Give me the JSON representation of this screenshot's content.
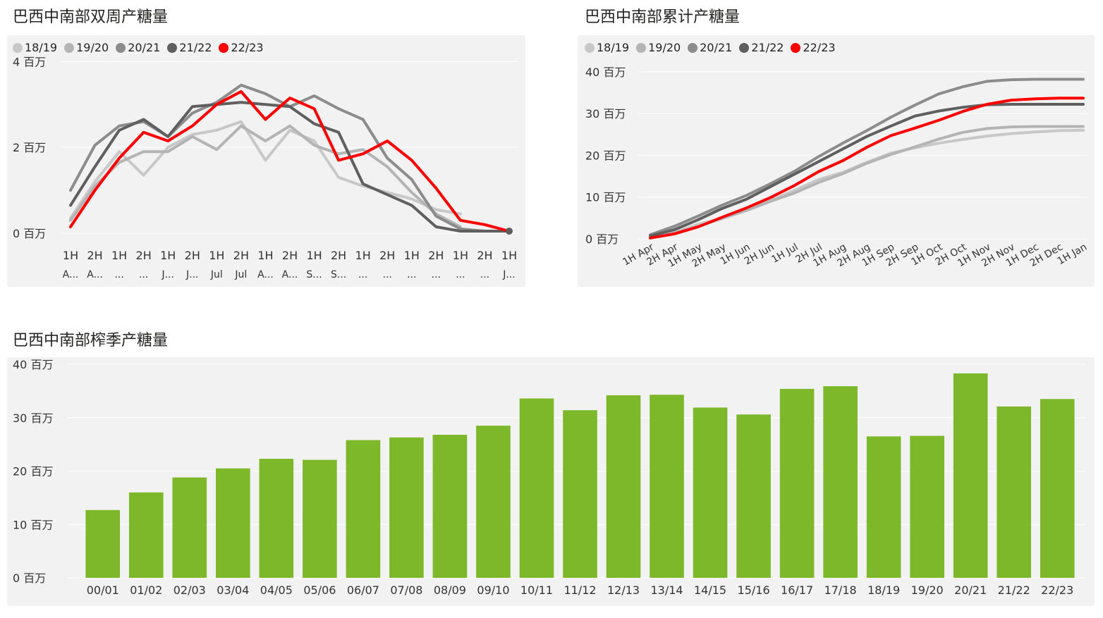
{
  "chart_data": [
    {
      "id": "biweekly",
      "type": "line",
      "title": "巴西中南部双周产糖量",
      "ylim": [
        0,
        4.3
      ],
      "y_ticks": [
        {
          "v": 0,
          "label": "0 百万"
        },
        {
          "v": 2,
          "label": "2 百万"
        },
        {
          "v": 4,
          "label": "4 百万"
        }
      ],
      "categories": [
        [
          "1H",
          "A..."
        ],
        [
          "2H",
          "A..."
        ],
        [
          "1H",
          "..."
        ],
        [
          "2H",
          "..."
        ],
        [
          "1H",
          "J..."
        ],
        [
          "2H",
          "J..."
        ],
        [
          "1H",
          "Jul"
        ],
        [
          "2H",
          "Jul"
        ],
        [
          "1H",
          "A..."
        ],
        [
          "2H",
          "A..."
        ],
        [
          "1H",
          "S..."
        ],
        [
          "2H",
          "S..."
        ],
        [
          "1H",
          "..."
        ],
        [
          "2H",
          "..."
        ],
        [
          "1H",
          "..."
        ],
        [
          "2H",
          "..."
        ],
        [
          "1H",
          "..."
        ],
        [
          "2H",
          "..."
        ],
        [
          "1H",
          "J..."
        ]
      ],
      "series": [
        {
          "name": "18/19",
          "color": "#c8c8c8",
          "values": [
            0.35,
            1.2,
            1.9,
            1.35,
            2.0,
            2.3,
            2.4,
            2.6,
            1.7,
            2.4,
            2.15,
            1.3,
            1.1,
            0.95,
            0.8,
            0.55,
            0.45,
            null,
            null
          ]
        },
        {
          "name": "19/20",
          "color": "#b4b4b4",
          "values": [
            0.3,
            1.1,
            1.65,
            1.9,
            1.9,
            2.25,
            1.95,
            2.5,
            2.15,
            2.5,
            2.05,
            1.85,
            1.95,
            1.55,
            0.95,
            0.45,
            0.15,
            null,
            null
          ]
        },
        {
          "name": "20/21",
          "color": "#8c8c8c",
          "values": [
            1.0,
            2.05,
            2.5,
            2.6,
            2.25,
            2.8,
            3.05,
            3.45,
            3.25,
            2.95,
            3.2,
            2.9,
            2.65,
            1.75,
            1.25,
            0.4,
            0.1,
            0.05,
            null
          ]
        },
        {
          "name": "21/22",
          "color": "#5f5f5f",
          "values": [
            0.65,
            1.55,
            2.4,
            2.65,
            2.25,
            2.95,
            3.0,
            3.05,
            3.0,
            2.95,
            2.55,
            2.35,
            1.15,
            0.9,
            0.65,
            0.15,
            0.05,
            0.05,
            0.05
          ]
        },
        {
          "name": "22/23",
          "color": "#ff0000",
          "values": [
            0.15,
            1.0,
            1.75,
            2.35,
            2.15,
            2.5,
            3.0,
            3.3,
            2.65,
            3.15,
            2.9,
            1.7,
            1.85,
            2.15,
            1.7,
            1.05,
            0.3,
            0.2,
            0.05
          ]
        }
      ]
    },
    {
      "id": "cumulative",
      "type": "line",
      "title": "巴西中南部累计产糖量",
      "ylim": [
        0,
        43
      ],
      "y_ticks": [
        {
          "v": 0,
          "label": "0 百万"
        },
        {
          "v": 10,
          "label": "10 百万"
        },
        {
          "v": 20,
          "label": "20 百万"
        },
        {
          "v": 30,
          "label": "30 百万"
        },
        {
          "v": 40,
          "label": "40 百万"
        }
      ],
      "categories": [
        "1H Apr",
        "2H Apr",
        "1H May",
        "2H May",
        "1H Jun",
        "2H Jun",
        "1H Jul",
        "2H Jul",
        "1H Aug",
        "2H Aug",
        "1H Sep",
        "2H Sep",
        "1H Oct",
        "2H Oct",
        "1H Nov",
        "2H Nov",
        "1H Dec",
        "2H Dec",
        "1H Jan"
      ],
      "series": [
        {
          "name": "18/19",
          "color": "#c8c8c8",
          "values": [
            0.4,
            1.6,
            3.5,
            4.9,
            6.9,
            9.2,
            11.6,
            14.2,
            15.9,
            18.3,
            20.5,
            21.8,
            22.9,
            23.8,
            24.6,
            25.2,
            25.6,
            25.9,
            26.0
          ]
        },
        {
          "name": "19/20",
          "color": "#b4b4b4",
          "values": [
            0.3,
            1.4,
            3.0,
            4.9,
            6.8,
            9.0,
            11.0,
            13.5,
            15.6,
            18.1,
            20.2,
            22.0,
            23.9,
            25.5,
            26.4,
            26.8,
            26.9,
            26.9,
            26.9
          ]
        },
        {
          "name": "20/21",
          "color": "#8c8c8c",
          "values": [
            1.0,
            3.0,
            5.5,
            8.1,
            10.4,
            13.2,
            16.2,
            19.7,
            22.9,
            25.9,
            29.1,
            32.0,
            34.7,
            36.4,
            37.7,
            38.1,
            38.2,
            38.2,
            38.2
          ]
        },
        {
          "name": "21/22",
          "color": "#5f5f5f",
          "values": [
            0.7,
            2.2,
            4.6,
            7.3,
            9.5,
            12.5,
            15.5,
            18.5,
            21.5,
            24.5,
            27.0,
            29.4,
            30.6,
            31.5,
            32.1,
            32.2,
            32.2,
            32.2,
            32.2
          ]
        },
        {
          "name": "22/23",
          "color": "#ff0000",
          "values": [
            0.2,
            1.2,
            2.9,
            5.2,
            7.4,
            9.9,
            12.8,
            16.1,
            18.7,
            21.9,
            24.7,
            26.5,
            28.4,
            30.5,
            32.2,
            33.2,
            33.5,
            33.7,
            33.7
          ]
        }
      ]
    },
    {
      "id": "season",
      "type": "bar",
      "title": "巴西中南部榨季产糖量",
      "ylim": [
        0,
        40
      ],
      "y_ticks": [
        {
          "v": 0,
          "label": "0 百万"
        },
        {
          "v": 10,
          "label": "10 百万"
        },
        {
          "v": 20,
          "label": "20 百万"
        },
        {
          "v": 30,
          "label": "30 百万"
        },
        {
          "v": 40,
          "label": "40 百万"
        }
      ],
      "bar_color": "#7cb829",
      "categories": [
        "00/01",
        "01/02",
        "02/03",
        "03/04",
        "04/05",
        "05/06",
        "06/07",
        "07/08",
        "08/09",
        "09/10",
        "10/11",
        "11/12",
        "12/13",
        "13/14",
        "14/15",
        "15/16",
        "16/17",
        "17/18",
        "18/19",
        "19/20",
        "20/21",
        "21/22",
        "22/23"
      ],
      "values": [
        12.7,
        16.0,
        18.8,
        20.5,
        22.3,
        22.1,
        25.8,
        26.3,
        26.8,
        28.5,
        33.6,
        31.4,
        34.2,
        34.3,
        31.9,
        30.6,
        35.4,
        35.9,
        26.5,
        26.6,
        38.3,
        32.1,
        33.5
      ]
    }
  ]
}
